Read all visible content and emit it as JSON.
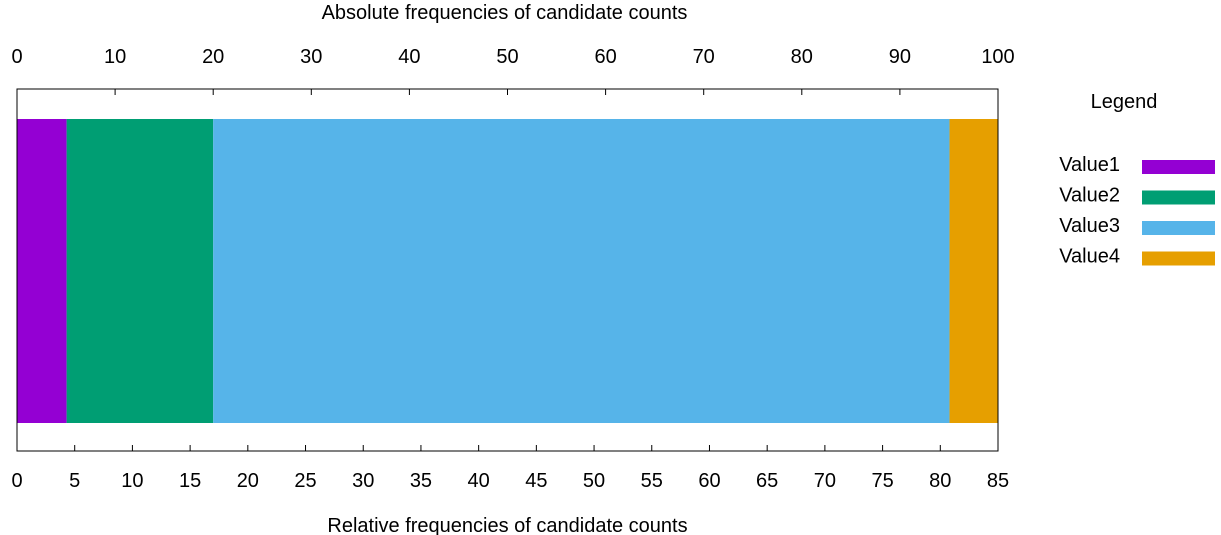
{
  "chart_data": {
    "type": "bar",
    "orientation": "horizontal-stacked",
    "title": "",
    "xlabel_top": "Absolute frequencies of candidate counts",
    "xlabel_bottom": "Relative frequencies of candidate counts",
    "top_axis": {
      "range": [
        0,
        100
      ],
      "ticks": [
        0,
        10,
        20,
        30,
        40,
        50,
        60,
        70,
        80,
        90,
        100
      ]
    },
    "bottom_axis": {
      "range": [
        0,
        85
      ],
      "ticks": [
        0,
        5,
        10,
        15,
        20,
        25,
        30,
        35,
        40,
        45,
        50,
        55,
        60,
        65,
        70,
        75,
        80,
        85
      ]
    },
    "series": [
      {
        "name": "Value1",
        "value": 4.3,
        "color": "#9400d3"
      },
      {
        "name": "Value2",
        "value": 12.7,
        "color": "#009e73"
      },
      {
        "name": "Value3",
        "value": 63.8,
        "color": "#56b4e9"
      },
      {
        "name": "Value4",
        "value": 4.2,
        "color": "#e69f00"
      }
    ],
    "legend": {
      "title": "Legend",
      "placement": "right"
    },
    "grid": false
  }
}
